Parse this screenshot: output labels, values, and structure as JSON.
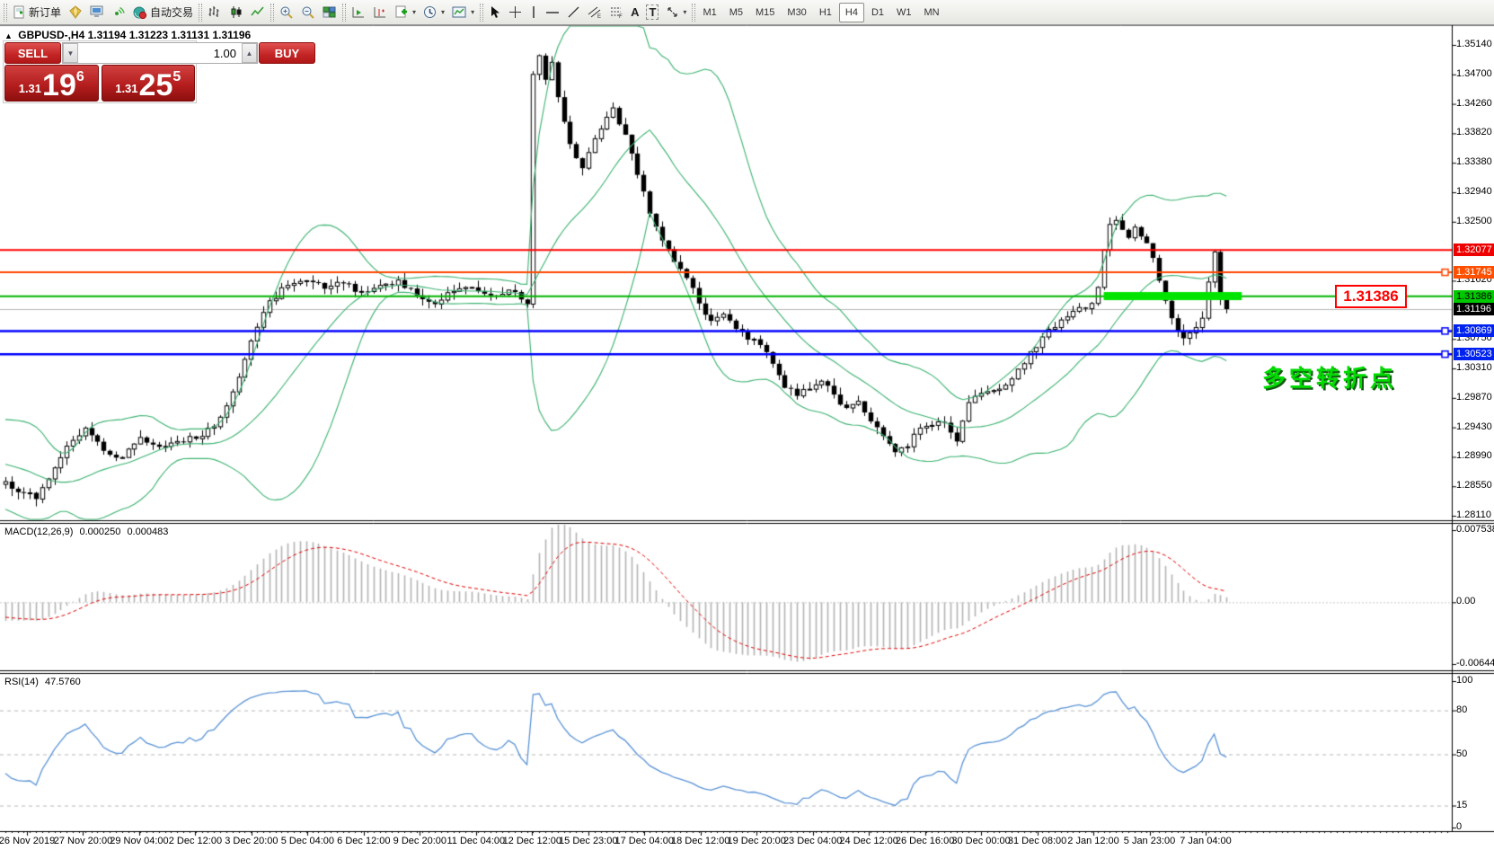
{
  "toolbar": {
    "new_order_label": "新订单",
    "auto_trading_label": "自动交易",
    "text_tool_a": "A",
    "text_tool_t": "T",
    "timeframes": [
      "M1",
      "M5",
      "M15",
      "M30",
      "H1",
      "H4",
      "D1",
      "W1",
      "MN"
    ],
    "active_timeframe": "H4"
  },
  "chart_header": {
    "collapse_glyph": "▲",
    "symbol": "GBPUSD-,H4",
    "open": "1.31194",
    "high": "1.31223",
    "low": "1.31131",
    "close": "1.31196"
  },
  "trade_panel": {
    "sell_label": "SELL",
    "buy_label": "BUY",
    "volume": "1.00",
    "sell_price_small": "1.31",
    "sell_price_big": "19",
    "sell_price_sup": "6",
    "buy_price_small": "1.31",
    "buy_price_big": "25",
    "buy_price_sup": "5"
  },
  "annotation": {
    "text": "多空转折点"
  },
  "price_note_box": {
    "text": "1.31386"
  },
  "chart_data": {
    "type": "candlestick",
    "symbol": "GBPUSD",
    "timeframe": "H4",
    "seed": 7,
    "candles_total": 200,
    "jitter": 0.0005,
    "wick": 0.0011,
    "y_ticks": [
      "1.35140",
      "1.34700",
      "1.34260",
      "1.33820",
      "1.33380",
      "1.32940",
      "1.32500",
      "1.31620",
      "1.30750",
      "1.30310",
      "1.29870",
      "1.29430",
      "1.28990",
      "1.28550",
      "1.28110"
    ],
    "y_tick_step": 0.0044,
    "close_waypoints": [
      [
        0,
        1.2862
      ],
      [
        3,
        1.2845
      ],
      [
        5,
        1.2836
      ],
      [
        7,
        1.2866
      ],
      [
        10,
        1.2915
      ],
      [
        13,
        1.2942
      ],
      [
        16,
        1.2908
      ],
      [
        19,
        1.2898
      ],
      [
        22,
        1.2928
      ],
      [
        25,
        1.2914
      ],
      [
        28,
        1.2922
      ],
      [
        31,
        1.2926
      ],
      [
        34,
        1.2944
      ],
      [
        37,
        1.2996
      ],
      [
        40,
        1.3072
      ],
      [
        43,
        1.3132
      ],
      [
        46,
        1.3155
      ],
      [
        49,
        1.3162
      ],
      [
        52,
        1.315
      ],
      [
        55,
        1.3158
      ],
      [
        58,
        1.3146
      ],
      [
        61,
        1.3155
      ],
      [
        64,
        1.3163
      ],
      [
        67,
        1.314
      ],
      [
        70,
        1.3127
      ],
      [
        73,
        1.3146
      ],
      [
        76,
        1.3152
      ],
      [
        79,
        1.314
      ],
      [
        82,
        1.3148
      ],
      [
        84,
        1.3134
      ],
      [
        85,
        1.3127
      ],
      [
        86,
        1.347
      ],
      [
        87,
        1.3498
      ],
      [
        88,
        1.3462
      ],
      [
        89,
        1.3488
      ],
      [
        90,
        1.3436
      ],
      [
        92,
        1.3366
      ],
      [
        94,
        1.333
      ],
      [
        96,
        1.3374
      ],
      [
        98,
        1.3406
      ],
      [
        99,
        1.342
      ],
      [
        101,
        1.338
      ],
      [
        103,
        1.332
      ],
      [
        105,
        1.3262
      ],
      [
        107,
        1.3222
      ],
      [
        109,
        1.319
      ],
      [
        111,
        1.3166
      ],
      [
        113,
        1.3128
      ],
      [
        115,
        1.3102
      ],
      [
        117,
        1.3112
      ],
      [
        119,
        1.309
      ],
      [
        121,
        1.3074
      ],
      [
        123,
        1.3066
      ],
      [
        125,
        1.3038
      ],
      [
        127,
        1.3002
      ],
      [
        129,
        1.299
      ],
      [
        131,
        1.3
      ],
      [
        133,
        1.3012
      ],
      [
        135,
        1.2992
      ],
      [
        137,
        1.2972
      ],
      [
        139,
        1.2982
      ],
      [
        141,
        1.2952
      ],
      [
        143,
        1.293
      ],
      [
        145,
        1.2906
      ],
      [
        147,
        1.2914
      ],
      [
        149,
        1.2942
      ],
      [
        151,
        1.2946
      ],
      [
        153,
        1.295
      ],
      [
        155,
        1.2922
      ],
      [
        157,
        1.298
      ],
      [
        159,
        1.2994
      ],
      [
        161,
        1.2998
      ],
      [
        163,
        1.3006
      ],
      [
        165,
        1.303
      ],
      [
        167,
        1.3056
      ],
      [
        169,
        1.3078
      ],
      [
        171,
        1.3092
      ],
      [
        173,
        1.3108
      ],
      [
        175,
        1.3122
      ],
      [
        177,
        1.3128
      ],
      [
        178,
        1.3152
      ],
      [
        179,
        1.3208
      ],
      [
        180,
        1.3246
      ],
      [
        181,
        1.3252
      ],
      [
        182,
        1.3238
      ],
      [
        183,
        1.3226
      ],
      [
        184,
        1.3242
      ],
      [
        185,
        1.3228
      ],
      [
        186,
        1.3218
      ],
      [
        187,
        1.3196
      ],
      [
        188,
        1.3162
      ],
      [
        189,
        1.3132
      ],
      [
        190,
        1.3106
      ],
      [
        191,
        1.3086
      ],
      [
        192,
        1.3076
      ],
      [
        193,
        1.3084
      ],
      [
        194,
        1.3092
      ],
      [
        195,
        1.3106
      ],
      [
        196,
        1.316
      ],
      [
        197,
        1.3205
      ],
      [
        198,
        1.3134
      ],
      [
        199,
        1.31196
      ]
    ],
    "bollinger": {
      "period": 20,
      "deviation": 2,
      "color": "#3cb371"
    },
    "hlines": [
      {
        "price": 1.32077,
        "color": "#ff0000",
        "width": 2,
        "label_bg": "#ee0000",
        "label_fg": "#ffffff",
        "marker": false
      },
      {
        "price": 1.31745,
        "color": "#ff4500",
        "width": 2,
        "label_bg": "#ff4f00",
        "label_fg": "#ffffff",
        "marker": true
      },
      {
        "price": 1.31386,
        "color": "#00b400",
        "width": 2,
        "label_bg": "#00c800",
        "label_fg": "#000000",
        "marker": false
      },
      {
        "price": 1.30869,
        "color": "#0000ff",
        "width": 2.5,
        "label_bg": "#0022ee",
        "label_fg": "#ffffff",
        "marker": true
      },
      {
        "price": 1.30523,
        "color": "#0000ff",
        "width": 2.5,
        "label_bg": "#0022ee",
        "label_fg": "#ffffff",
        "marker": true
      }
    ],
    "current_price": {
      "value": 1.31196,
      "line_color": "#b8b8b8",
      "label_bg": "#000000",
      "label_fg": "#ffffff"
    },
    "highlight_bar": {
      "from_index": 179,
      "to_index": 201.5,
      "price": 1.3139,
      "color": "#00e400",
      "thickness": 9
    },
    "macd": {
      "name": "MACD(12,26,9)",
      "value_main": "0.000250",
      "value_signal": "0.000483",
      "fast": 12,
      "slow": 26,
      "signal": 9,
      "max": 0.007538,
      "min": -0.006446,
      "axis_ticks": [
        "0.007538",
        "0.00",
        "-0.006446"
      ],
      "hist_color": "#b4b4b4",
      "signal_color": "#e00000"
    },
    "rsi": {
      "name": "RSI(14)",
      "value": "47.5760",
      "period": 14,
      "levels": [
        80,
        50,
        15
      ],
      "axis_ticks": [
        "100",
        "80",
        "50",
        "15",
        "0"
      ],
      "color": "#5b94d6"
    },
    "x_labels": [
      "26 Nov 2019",
      "27 Nov 20:00",
      "29 Nov 04:00",
      "2 Dec 12:00",
      "3 Dec 20:00",
      "5 Dec 04:00",
      "6 Dec 12:00",
      "9 Dec 20:00",
      "11 Dec 04:00",
      "12 Dec 12:00",
      "15 Dec 23:00",
      "17 Dec 04:00",
      "18 Dec 12:00",
      "19 Dec 20:00",
      "23 Dec 04:00",
      "24 Dec 12:00",
      "26 Dec 16:00",
      "30 Dec 00:00",
      "31 Dec 08:00",
      "2 Jan 12:00",
      "5 Jan 23:00",
      "7 Jan 04:00"
    ]
  }
}
